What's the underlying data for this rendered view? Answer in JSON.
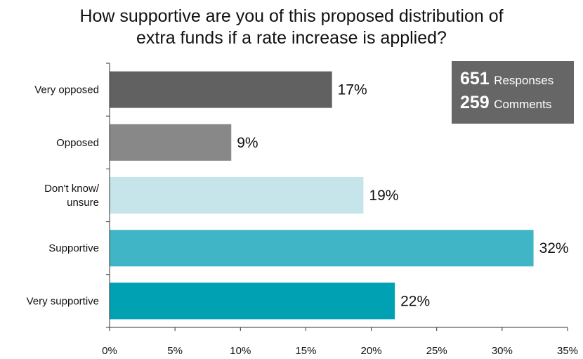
{
  "title_line1": "How supportive are you of this proposed distribution of",
  "title_line2": "extra funds if a rate increase is applied?",
  "stats": {
    "responses_count": "651",
    "responses_label": "Responses",
    "comments_count": "259",
    "comments_label": "Comments"
  },
  "chart_data": {
    "type": "bar",
    "orientation": "horizontal",
    "categories": [
      "Very opposed",
      "Opposed",
      "Don't know/ unsure",
      "Supportive",
      "Very supportive"
    ],
    "category_lines": [
      [
        "Very opposed"
      ],
      [
        "Opposed"
      ],
      [
        "Don't know/",
        "unsure"
      ],
      [
        "Supportive"
      ],
      [
        "Very supportive"
      ]
    ],
    "values": [
      17,
      9,
      19,
      32,
      22
    ],
    "data_labels": [
      "17%",
      "9%",
      "19%",
      "32%",
      "22%"
    ],
    "bar_values_exact": [
      17.0,
      9.3,
      19.4,
      32.4,
      21.8
    ],
    "colors": [
      "#616161",
      "#888888",
      "#c6e5ea",
      "#40b5c5",
      "#00a1b3"
    ],
    "xlim": [
      0,
      35
    ],
    "xticks": [
      0,
      5,
      10,
      15,
      20,
      25,
      30,
      35
    ],
    "xtick_labels": [
      "0%",
      "5%",
      "10%",
      "15%",
      "20%",
      "25%",
      "30%",
      "35%"
    ],
    "grid": false
  }
}
